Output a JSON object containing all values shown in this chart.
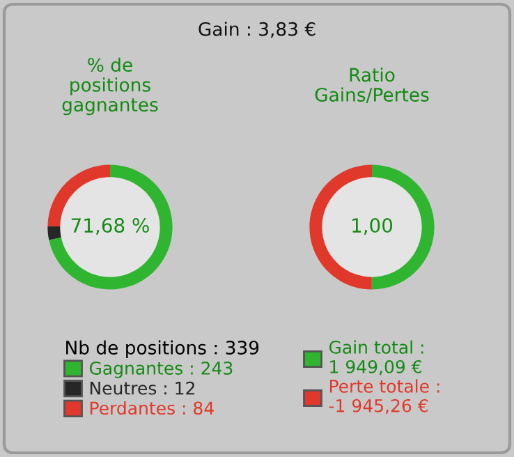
{
  "chart_data": [
    {
      "type": "other",
      "title": "Gain : 3,83 €"
    },
    {
      "type": "donut",
      "title": "% de\npositions\ngagnantes",
      "categories": [
        "Gagnantes : 243",
        "Neutres : 12",
        "Perdantes : 84"
      ],
      "values": [
        243,
        12,
        84
      ],
      "colors": [
        "#2fb52f",
        "#262626",
        "#e0382a"
      ],
      "annotations": [
        "71,68 %"
      ],
      "legend_title": "Nb de positions : 339",
      "legend": "bottom"
    },
    {
      "type": "donut",
      "title": "Ratio\nGains/Pertes",
      "categories": [
        "Gain total :\n1 949,09 €",
        "Perte totale :\n-1 945,26 €"
      ],
      "values": [
        1949.09,
        1945.26
      ],
      "colors": [
        "#2fb52f",
        "#e0382a"
      ],
      "annotations": [
        "1,00"
      ],
      "legend": "bottom"
    }
  ]
}
